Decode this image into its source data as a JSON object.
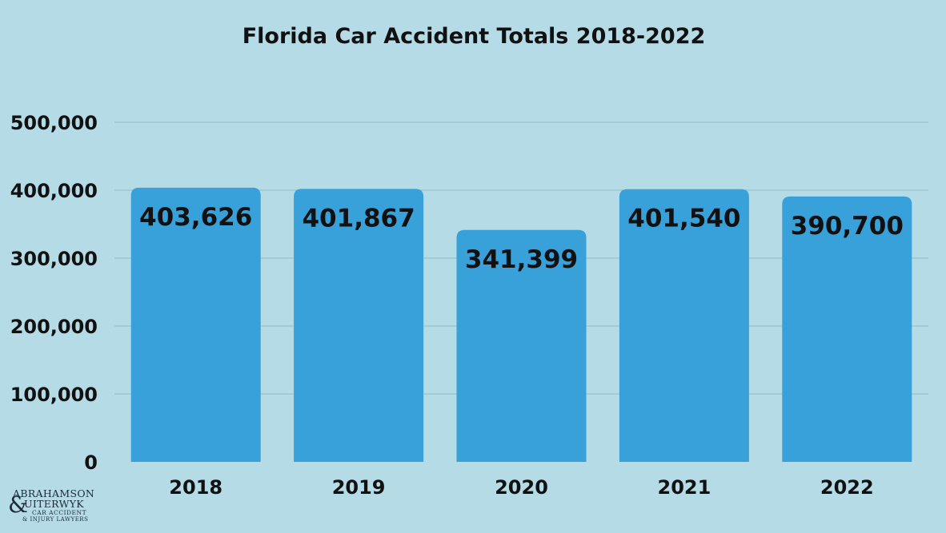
{
  "chart_data": {
    "type": "bar",
    "title": "Florida Car Accident Totals 2018-2022",
    "categories": [
      "2018",
      "2019",
      "2020",
      "2021",
      "2022"
    ],
    "values": [
      403626,
      401867,
      341399,
      401540,
      390700
    ],
    "data_labels": [
      "403,626",
      "401,867",
      "341,399",
      "401,540",
      "390,700"
    ],
    "y_ticks": [
      0,
      100000,
      200000,
      300000,
      400000,
      500000
    ],
    "y_tick_labels": [
      "0",
      "100,000",
      "200,000",
      "300,000",
      "400,000",
      "500,000"
    ],
    "ylim": [
      0,
      500000
    ],
    "grid": true,
    "legend": "none",
    "colors": {
      "background": "#b5dbe6",
      "bar": "#38a1d9",
      "grid": "#8fbccb",
      "text": "#111111"
    }
  },
  "logo": {
    "line1": "ABRAHAMSON",
    "ampersand": "&",
    "line2": "UITERWYK",
    "line3": "CAR ACCIDENT",
    "line4": "& INJURY LAWYERS"
  }
}
